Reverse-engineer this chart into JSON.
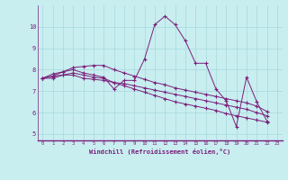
{
  "xlabel": "Windchill (Refroidissement éolien,°C)",
  "background_color": "#c8eef0",
  "line_color": "#7b1f7b",
  "grid_color": "#a8d8dc",
  "xlim": [
    -0.5,
    23.5
  ],
  "ylim": [
    4.7,
    11.0
  ],
  "xticks": [
    0,
    1,
    2,
    3,
    4,
    5,
    6,
    7,
    8,
    9,
    10,
    11,
    12,
    13,
    14,
    15,
    16,
    17,
    18,
    19,
    20,
    21,
    22,
    23
  ],
  "yticks": [
    5,
    6,
    7,
    8,
    9,
    10
  ],
  "series": [
    {
      "x": [
        0,
        1,
        2,
        3,
        4,
        5,
        6,
        7,
        8,
        9,
        10,
        11,
        12,
        13,
        14,
        15,
        16,
        17,
        18,
        19,
        20,
        21,
        22
      ],
      "y": [
        7.6,
        7.8,
        7.9,
        8.0,
        7.85,
        7.75,
        7.65,
        7.1,
        7.5,
        7.5,
        8.5,
        10.1,
        10.5,
        10.1,
        9.35,
        8.3,
        8.3,
        7.1,
        6.55,
        5.35,
        7.65,
        6.5,
        5.6
      ]
    },
    {
      "x": [
        0,
        1,
        2,
        3,
        4,
        5,
        6,
        7,
        8,
        9,
        10,
        11,
        12,
        13,
        14,
        15,
        16,
        17,
        18,
        19,
        20,
        21,
        22
      ],
      "y": [
        7.6,
        7.7,
        7.75,
        7.75,
        7.6,
        7.55,
        7.5,
        7.4,
        7.35,
        7.25,
        7.15,
        7.05,
        6.95,
        6.85,
        6.75,
        6.65,
        6.55,
        6.45,
        6.35,
        6.25,
        6.15,
        6.0,
        5.85
      ]
    },
    {
      "x": [
        0,
        1,
        2,
        3,
        4,
        5,
        6,
        7,
        8,
        9,
        10,
        11,
        12,
        13,
        14,
        15,
        16,
        17,
        18,
        19,
        20,
        21,
        22
      ],
      "y": [
        7.6,
        7.7,
        7.9,
        8.1,
        8.15,
        8.2,
        8.2,
        8.0,
        7.85,
        7.7,
        7.55,
        7.4,
        7.3,
        7.15,
        7.05,
        6.95,
        6.85,
        6.75,
        6.65,
        6.55,
        6.45,
        6.3,
        6.05
      ]
    },
    {
      "x": [
        0,
        1,
        2,
        3,
        4,
        5,
        6,
        7,
        8,
        9,
        10,
        11,
        12,
        13,
        14,
        15,
        16,
        17,
        18,
        19,
        20,
        21,
        22
      ],
      "y": [
        7.6,
        7.6,
        7.75,
        7.85,
        7.75,
        7.65,
        7.6,
        7.4,
        7.25,
        7.1,
        6.95,
        6.8,
        6.65,
        6.5,
        6.4,
        6.3,
        6.2,
        6.1,
        5.95,
        5.85,
        5.75,
        5.65,
        5.55
      ]
    }
  ]
}
